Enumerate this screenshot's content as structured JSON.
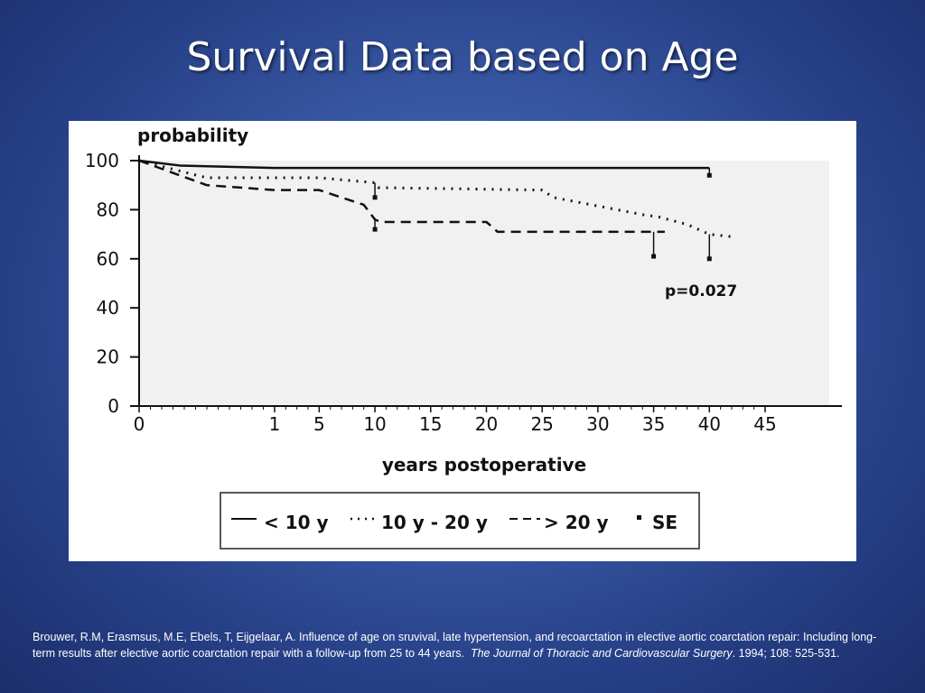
{
  "slide": {
    "title": "Survival Data based on Age"
  },
  "citation": {
    "text": "Brouwer, R.M, Erasmsus, M.E, Ebels, T, Eijgelaar, A.  Influence of age on sruvival, late hypertension, and recoarctation in elective aortic coarctation repair: Including long-term results after elective aortic coarctation repair with a follow-up from 25 to 44 years.",
    "journal": "The Journal of Thoracic and Cardiovascular Surgery",
    "details": ".  1994; 108: 525-531."
  },
  "chart_data": {
    "type": "line",
    "ylabel": "probability",
    "xlabel": "years postoperative",
    "ylim": [
      0,
      100
    ],
    "yticks": [
      "0",
      "20",
      "40",
      "60",
      "80",
      "100"
    ],
    "xticks": [
      "0",
      "1",
      "5",
      "10",
      "15",
      "20",
      "25",
      "30",
      "35",
      "40",
      "45"
    ],
    "annotation": "p=0.027",
    "grid": false,
    "legend_position": "bottom",
    "legend": [
      {
        "label": "< 10 y",
        "style": "solid"
      },
      {
        "label": "10 y - 20 y",
        "style": "dotted"
      },
      {
        "label": "> 20 y",
        "style": "dashed"
      },
      {
        "label": "SE",
        "style": "marker"
      }
    ],
    "series": [
      {
        "name": "< 10 y",
        "x": [
          0,
          0.3,
          1,
          10,
          20,
          30,
          35,
          40
        ],
        "y": [
          100,
          98,
          97,
          97,
          97,
          97,
          97,
          97
        ],
        "se_points": [
          {
            "x": 40,
            "y": 94
          }
        ]
      },
      {
        "name": "10 y - 20 y",
        "x": [
          0,
          0.5,
          5,
          10,
          10.3,
          25,
          26,
          34,
          35.5,
          38,
          40,
          42
        ],
        "y": [
          100,
          93,
          93,
          91,
          89,
          88,
          85,
          78,
          77,
          74,
          70,
          69
        ],
        "se_points": [
          {
            "x": 10,
            "y": 85
          },
          {
            "x": 40,
            "y": 60
          }
        ]
      },
      {
        "name": "> 20 y",
        "x": [
          0,
          0.5,
          1,
          5,
          9,
          10,
          10.5,
          20,
          21,
          35,
          36
        ],
        "y": [
          100,
          90,
          88,
          88,
          82,
          76,
          75,
          75,
          71,
          71,
          71
        ],
        "se_points": [
          {
            "x": 10,
            "y": 72
          },
          {
            "x": 35,
            "y": 61
          }
        ]
      }
    ]
  }
}
